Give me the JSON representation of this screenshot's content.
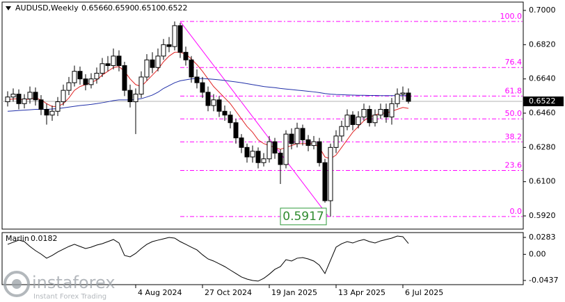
{
  "chart_data": {
    "type": "candlestick",
    "symbol": "AUDUSD,Weekly",
    "header_ohlc": [
      "0.6566",
      "0.6590",
      "0.6510",
      "0.6522"
    ],
    "categories": [
      null,
      null,
      null,
      null,
      null,
      null,
      null,
      null,
      null,
      null,
      null,
      null,
      null,
      null,
      null,
      null,
      null,
      null,
      null,
      null,
      null,
      null,
      null,
      "4 Aug 2024",
      null,
      null,
      null,
      null,
      null,
      null,
      null,
      null,
      null,
      null,
      null,
      "27 Oct 2024",
      null,
      null,
      null,
      null,
      null,
      null,
      null,
      null,
      null,
      null,
      null,
      "19 Jan 2025",
      null,
      null,
      null,
      null,
      null,
      null,
      null,
      null,
      null,
      null,
      null,
      "13 Apr 2025",
      null,
      null,
      null,
      null,
      null,
      null,
      null,
      null,
      null,
      null,
      null,
      "6 Jul 2025",
      null
    ],
    "open": [
      0.652,
      0.6545,
      0.656,
      0.651,
      0.6535,
      0.657,
      0.653,
      0.648,
      0.645,
      0.647,
      0.652,
      0.658,
      0.662,
      0.668,
      0.664,
      0.661,
      0.664,
      0.667,
      0.672,
      0.671,
      0.676,
      0.671,
      0.658,
      0.652,
      0.656,
      0.665,
      0.674,
      0.67,
      0.676,
      0.682,
      0.681,
      0.692,
      0.678,
      0.674,
      0.665,
      0.662,
      0.657,
      0.65,
      0.653,
      0.647,
      0.645,
      0.641,
      0.633,
      0.628,
      0.623,
      0.626,
      0.62,
      0.622,
      0.631,
      0.625,
      0.619,
      0.635,
      0.63,
      0.638,
      0.632,
      0.629,
      0.631,
      0.62,
      0.6,
      0.628,
      0.634,
      0.639,
      0.645,
      0.64,
      0.644,
      0.648,
      0.641,
      0.645,
      0.648,
      0.644,
      0.651,
      0.656,
      0.6566
    ],
    "high": [
      0.6575,
      0.659,
      0.6585,
      0.656,
      0.66,
      0.6595,
      0.6555,
      0.651,
      0.65,
      0.6545,
      0.661,
      0.665,
      0.671,
      0.6705,
      0.6665,
      0.667,
      0.67,
      0.675,
      0.676,
      0.68,
      0.679,
      0.673,
      0.661,
      0.659,
      0.668,
      0.677,
      0.678,
      0.68,
      0.685,
      0.686,
      0.6942,
      0.6935,
      0.681,
      0.676,
      0.669,
      0.665,
      0.66,
      0.656,
      0.655,
      0.65,
      0.647,
      0.643,
      0.635,
      0.63,
      0.629,
      0.628,
      0.625,
      0.634,
      0.633,
      0.627,
      0.637,
      0.638,
      0.641,
      0.64,
      0.6345,
      0.634,
      0.633,
      0.622,
      0.63,
      0.637,
      0.642,
      0.648,
      0.647,
      0.647,
      0.651,
      0.65,
      0.648,
      0.651,
      0.651,
      0.654,
      0.659,
      0.66,
      0.659
    ],
    "low": [
      0.6495,
      0.652,
      0.648,
      0.6485,
      0.651,
      0.65,
      0.645,
      0.64,
      0.642,
      0.6445,
      0.65,
      0.6555,
      0.66,
      0.661,
      0.658,
      0.659,
      0.6615,
      0.665,
      0.668,
      0.669,
      0.668,
      0.655,
      0.649,
      0.635,
      0.654,
      0.663,
      0.667,
      0.668,
      0.674,
      0.678,
      0.679,
      0.675,
      0.671,
      0.662,
      0.659,
      0.654,
      0.647,
      0.647,
      0.644,
      0.642,
      0.638,
      0.63,
      0.625,
      0.62,
      0.62,
      0.617,
      0.618,
      0.62,
      0.622,
      0.6088,
      0.617,
      0.627,
      0.628,
      0.629,
      0.626,
      0.627,
      0.618,
      0.599,
      0.5917,
      0.625,
      0.631,
      0.637,
      0.637,
      0.638,
      0.642,
      0.639,
      0.639,
      0.643,
      0.641,
      0.64,
      0.649,
      0.653,
      0.651
    ],
    "close": [
      0.6545,
      0.656,
      0.651,
      0.6535,
      0.657,
      0.653,
      0.648,
      0.645,
      0.647,
      0.652,
      0.658,
      0.662,
      0.668,
      0.664,
      0.661,
      0.664,
      0.667,
      0.672,
      0.671,
      0.676,
      0.671,
      0.658,
      0.652,
      0.656,
      0.665,
      0.674,
      0.67,
      0.676,
      0.682,
      0.681,
      0.692,
      0.678,
      0.674,
      0.665,
      0.662,
      0.657,
      0.65,
      0.653,
      0.647,
      0.645,
      0.641,
      0.633,
      0.628,
      0.623,
      0.626,
      0.62,
      0.622,
      0.631,
      0.625,
      0.619,
      0.635,
      0.63,
      0.638,
      0.632,
      0.629,
      0.631,
      0.62,
      0.6,
      0.628,
      0.634,
      0.639,
      0.645,
      0.64,
      0.644,
      0.648,
      0.641,
      0.645,
      0.648,
      0.644,
      0.651,
      0.656,
      0.6566,
      0.6522
    ],
    "lines": [
      {
        "color": "#e02424",
        "values": [
          0.653,
          0.6535,
          0.6535,
          0.653,
          0.6535,
          0.654,
          0.653,
          0.651,
          0.6495,
          0.6495,
          0.651,
          0.654,
          0.658,
          0.66,
          0.661,
          0.662,
          0.6635,
          0.666,
          0.668,
          0.67,
          0.6705,
          0.668,
          0.664,
          0.661,
          0.66,
          0.663,
          0.666,
          0.669,
          0.673,
          0.676,
          0.678,
          0.678,
          0.677,
          0.6745,
          0.6715,
          0.668,
          0.664,
          0.66,
          0.657,
          0.654,
          0.651,
          0.647,
          0.643,
          0.639,
          0.636,
          0.632,
          0.63,
          0.629,
          0.628,
          0.627,
          0.628,
          0.629,
          0.63,
          0.63,
          0.63,
          0.63,
          0.628,
          0.623,
          0.622,
          0.624,
          0.628,
          0.632,
          0.636,
          0.639,
          0.642,
          0.644,
          0.645,
          0.646,
          0.646,
          0.647,
          0.648,
          0.649,
          0.6485
        ]
      },
      {
        "color": "#1f2ea8",
        "values": [
          0.647,
          0.6472,
          0.6474,
          0.6476,
          0.6478,
          0.648,
          0.648,
          0.648,
          0.6482,
          0.6484,
          0.6488,
          0.6492,
          0.6496,
          0.65,
          0.6503,
          0.6506,
          0.651,
          0.6515,
          0.652,
          0.6526,
          0.653,
          0.653,
          0.653,
          0.6532,
          0.6536,
          0.6545,
          0.6555,
          0.657,
          0.659,
          0.6605,
          0.662,
          0.663,
          0.6635,
          0.664,
          0.6642,
          0.6642,
          0.664,
          0.6638,
          0.6635,
          0.6632,
          0.6628,
          0.6624,
          0.662,
          0.6615,
          0.661,
          0.6605,
          0.66,
          0.6597,
          0.6594,
          0.659,
          0.6587,
          0.6584,
          0.6581,
          0.6578,
          0.6575,
          0.6572,
          0.6568,
          0.6563,
          0.656,
          0.6558,
          0.6557,
          0.6556,
          0.6555,
          0.6554,
          0.6554,
          0.6553,
          0.6553,
          0.6552,
          0.6552,
          0.6552,
          0.6552,
          0.6552,
          0.6552
        ]
      }
    ],
    "ylim": [
      0.58507,
      0.70438
    ],
    "yticks": [
      {
        "value": 0.7,
        "label": "0.7000"
      },
      {
        "value": 0.682,
        "label": "0.6820"
      },
      {
        "value": 0.664,
        "label": "0.6640"
      },
      {
        "value": 0.646,
        "label": "0.6460"
      },
      {
        "value": 0.628,
        "label": "0.6280"
      },
      {
        "value": 0.61,
        "label": "0.6100"
      },
      {
        "value": 0.592,
        "label": "0.5920"
      }
    ],
    "fib_color": "#ff00ff",
    "fib_levels": [
      {
        "value": 0.5917,
        "label": "0.0"
      },
      {
        "value": 0.6159,
        "label": "23.6"
      },
      {
        "value": 0.6309,
        "label": "38.2"
      },
      {
        "value": 0.643,
        "label": "50.0"
      },
      {
        "value": 0.655,
        "label": "61.8"
      },
      {
        "value": 0.67,
        "label": "76.4"
      },
      {
        "value": 0.6942,
        "label": "100.0"
      }
    ],
    "annotation": "0.5917",
    "current_price": {
      "value": 0.6522,
      "label": "0.6522"
    },
    "indicator": {
      "title": "Marlin",
      "last": "0.0182",
      "color": "#000000",
      "values": [
        0.0167,
        0.0202,
        0.0237,
        0.0213,
        0.0132,
        0.0062,
        0.0004,
        -0.0065,
        -0.0019,
        0.0039,
        0.0086,
        0.0132,
        0.0167,
        0.0132,
        0.0097,
        0.012,
        0.0155,
        0.0178,
        0.0213,
        0.0248,
        0.019,
        -0.0019,
        -0.0042,
        0.0016,
        0.0097,
        0.0167,
        0.0213,
        0.0237,
        0.026,
        0.0283,
        0.0271,
        0.0213,
        0.0167,
        0.012,
        0.0074,
        -0.0007,
        -0.0077,
        -0.0112,
        -0.0158,
        -0.0205,
        -0.0263,
        -0.0321,
        -0.0379,
        -0.0414,
        -0.0437,
        -0.0448,
        -0.0402,
        -0.0332,
        -0.0251,
        -0.0205,
        -0.0089,
        -0.0112,
        -0.0065,
        -0.0054,
        -0.0077,
        -0.0112,
        -0.0181,
        -0.0321,
        -0.01,
        0.012,
        0.0178,
        0.0213,
        0.019,
        0.0225,
        0.0248,
        0.0213,
        0.019,
        0.0225,
        0.0248,
        0.0271,
        0.0306,
        0.0295,
        0.0182
      ],
      "y2lim": [
        -0.0507,
        0.0364
      ],
      "y2ticks": [
        0.0283,
        {
          "value": 0,
          "label": "0.00"
        },
        -0.0437
      ]
    },
    "watermark": {
      "name": "instaforex",
      "tagline": "Instant Forex Trading"
    }
  }
}
